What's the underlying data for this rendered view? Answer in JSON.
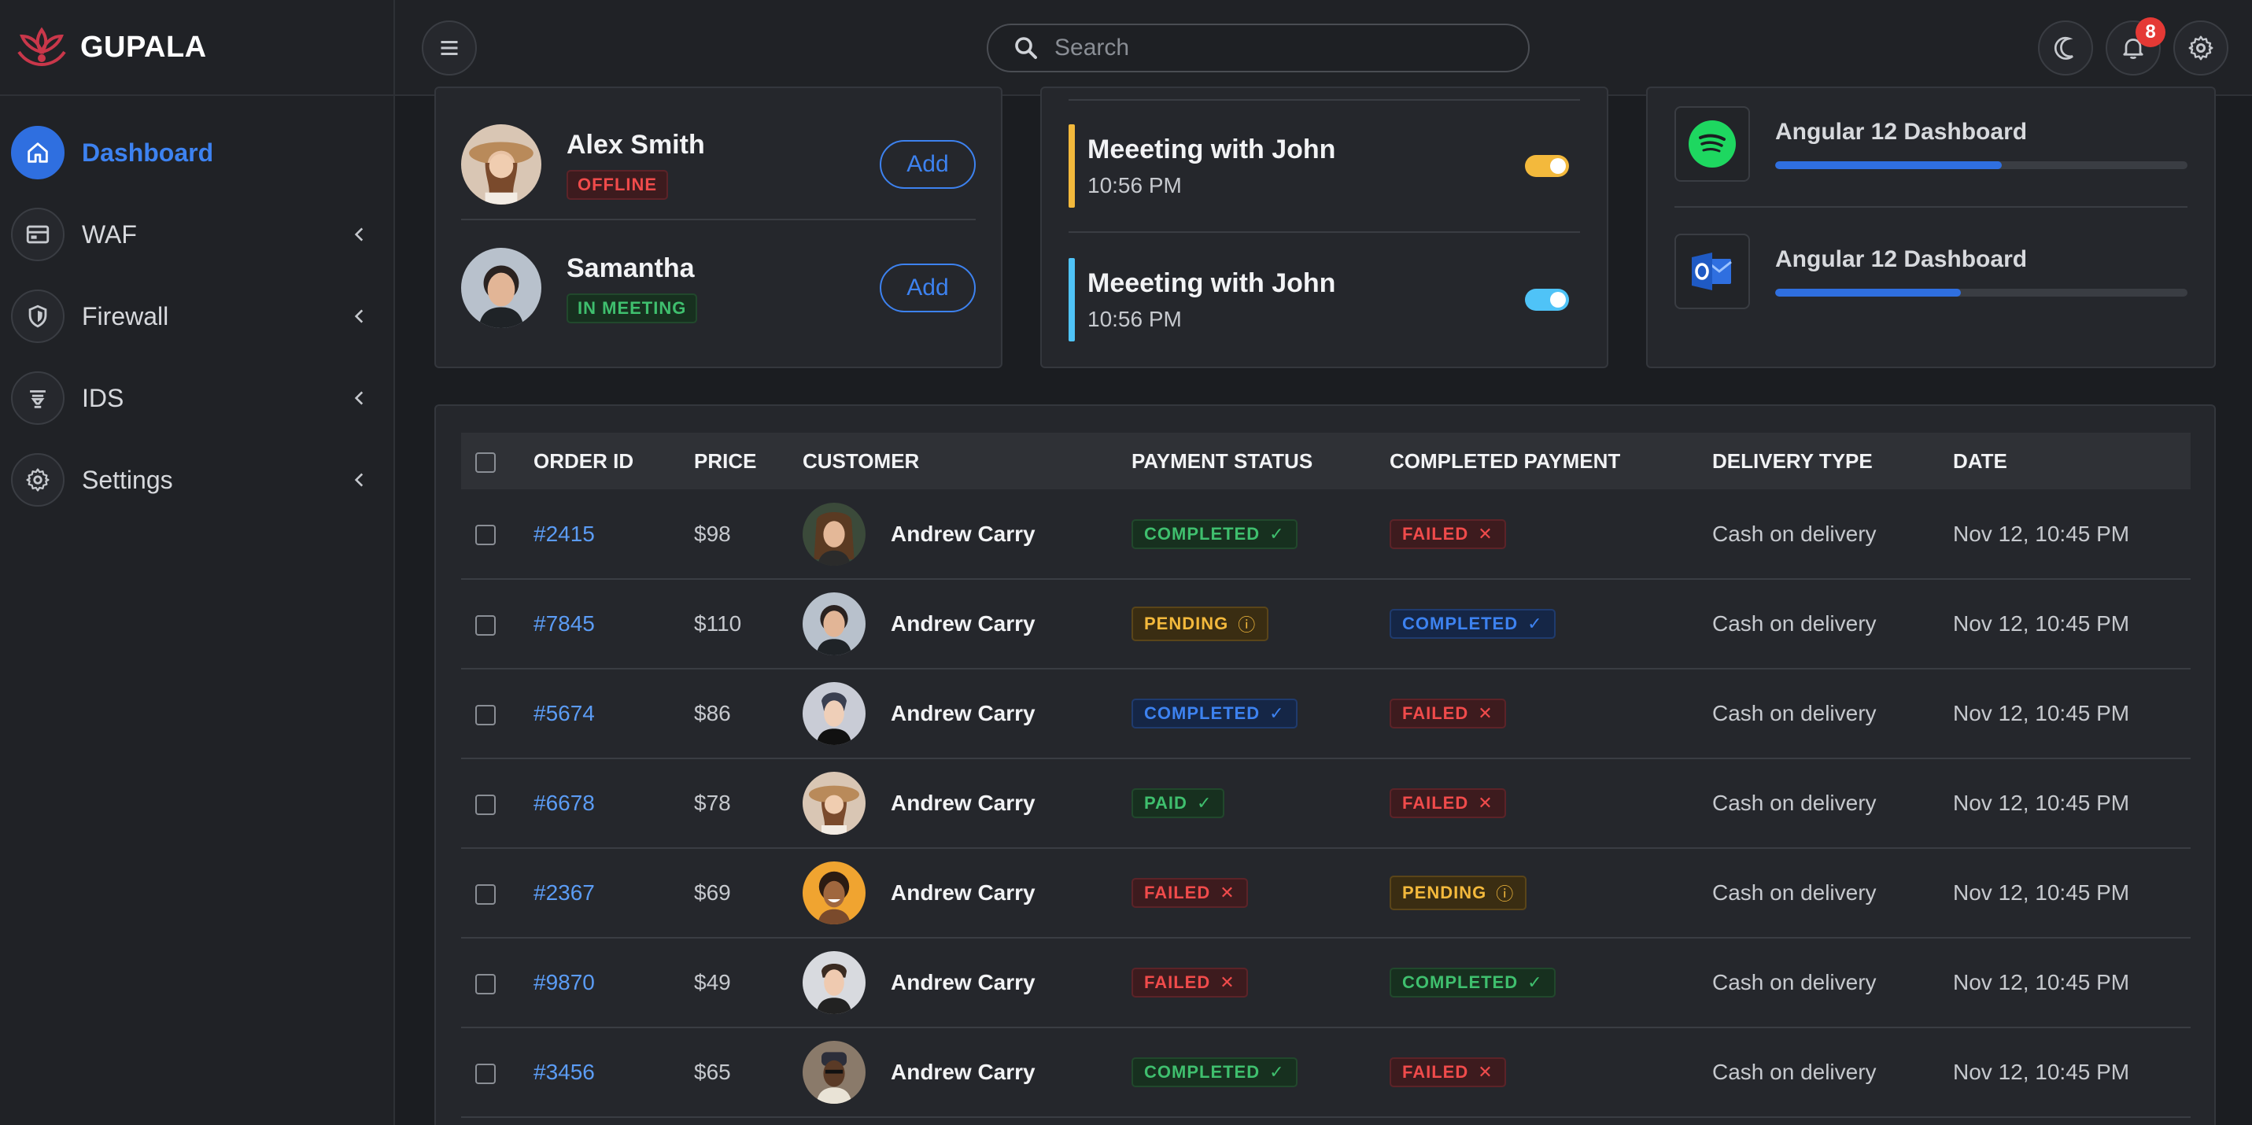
{
  "brand": {
    "name": "GUPALA"
  },
  "sidebar": {
    "items": [
      {
        "label": "Dashboard",
        "icon": "home-icon",
        "active": true
      },
      {
        "label": "WAF",
        "icon": "window-icon"
      },
      {
        "label": "Firewall",
        "icon": "shield-icon"
      },
      {
        "label": "IDS",
        "icon": "filter-icon"
      },
      {
        "label": "Settings",
        "icon": "gear-icon"
      }
    ]
  },
  "header": {
    "search_placeholder": "Search",
    "notification_count": "8"
  },
  "users": [
    {
      "name": "Alex Smith",
      "status": "OFFLINE",
      "button": "Add"
    },
    {
      "name": "Samantha",
      "status": "IN MEETING",
      "button": "Add"
    }
  ],
  "meetings": [
    {
      "title": "Meeeting with John",
      "time": "10:56 PM",
      "color": "#f3b93c"
    },
    {
      "title": "Meeeting with John",
      "time": "10:56 PM",
      "color": "#4fc3f7"
    }
  ],
  "apps": [
    {
      "title": "Angular 12 Dashboard",
      "icon": "spotify-icon",
      "progress": 0.55
    },
    {
      "title": "Angular 12 Dashboard",
      "icon": "outlook-icon",
      "progress": 0.45
    }
  ],
  "table": {
    "headers": [
      "ORDER ID",
      "PRICE",
      "CUSTOMER",
      "PAYMENT STATUS",
      "COMPLETED PAYMENT",
      "DELIVERY TYPE",
      "DATE"
    ],
    "rows": [
      {
        "id": "#2415",
        "price": "$98",
        "customer": "Andrew Carry",
        "pay": "COMPLETED",
        "pay_style": "green",
        "done": "FAILED",
        "done_style": "red",
        "delivery": "Cash on delivery",
        "date": "Nov 12, 10:45 PM"
      },
      {
        "id": "#7845",
        "price": "$110",
        "customer": "Andrew Carry",
        "pay": "PENDING",
        "pay_style": "yellow",
        "done": "COMPLETED",
        "done_style": "blue",
        "delivery": "Cash on delivery",
        "date": "Nov 12, 10:45 PM"
      },
      {
        "id": "#5674",
        "price": "$86",
        "customer": "Andrew Carry",
        "pay": "COMPLETED",
        "pay_style": "blue",
        "done": "FAILED",
        "done_style": "red",
        "delivery": "Cash on delivery",
        "date": "Nov 12, 10:45 PM"
      },
      {
        "id": "#6678",
        "price": "$78",
        "customer": "Andrew Carry",
        "pay": "PAID",
        "pay_style": "green",
        "done": "FAILED",
        "done_style": "red",
        "delivery": "Cash on delivery",
        "date": "Nov 12, 10:45 PM"
      },
      {
        "id": "#2367",
        "price": "$69",
        "customer": "Andrew Carry",
        "pay": "FAILED",
        "pay_style": "red",
        "done": "PENDING",
        "done_style": "yellow",
        "delivery": "Cash on delivery",
        "date": "Nov 12, 10:45 PM"
      },
      {
        "id": "#9870",
        "price": "$49",
        "customer": "Andrew Carry",
        "pay": "FAILED",
        "pay_style": "red",
        "done": "COMPLETED",
        "done_style": "green",
        "delivery": "Cash on delivery",
        "date": "Nov 12, 10:45 PM"
      },
      {
        "id": "#3456",
        "price": "$65",
        "customer": "Andrew Carry",
        "pay": "COMPLETED",
        "pay_style": "green",
        "done": "FAILED",
        "done_style": "red",
        "delivery": "Cash on delivery",
        "date": "Nov 12, 10:45 PM"
      }
    ]
  },
  "colors": {
    "accent": "#2f6fe0",
    "brand_red": "#c9374a",
    "success": "#3fbf6e",
    "danger": "#f04b4b",
    "warning": "#f3b93c"
  }
}
